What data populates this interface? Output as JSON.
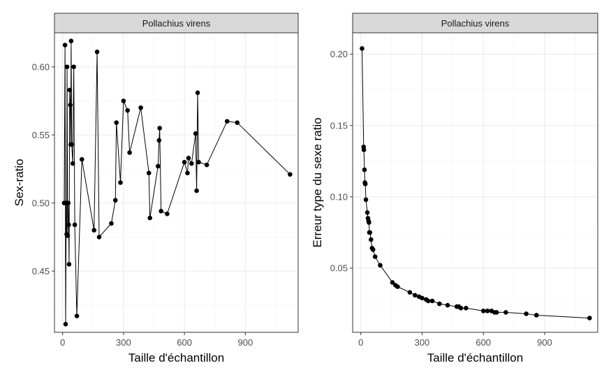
{
  "chart_data": [
    {
      "type": "line",
      "panel_title": "Pollachius virens",
      "xlabel": "Taille d'échantillon",
      "ylabel": "Sex-ratio",
      "xlim": [
        -40,
        1160
      ],
      "ylim": [
        0.405,
        0.625
      ],
      "x_ticks": [
        0,
        300,
        600,
        900
      ],
      "x_tick_labels": [
        "0",
        "300",
        "600",
        "900"
      ],
      "y_ticks": [
        0.45,
        0.5,
        0.55,
        0.6
      ],
      "y_tick_labels": [
        "0.45",
        "0.50",
        "0.55",
        "0.60"
      ],
      "grid": true,
      "series": [
        {
          "x": [
            8,
            12,
            15,
            18,
            20,
            22,
            25,
            28,
            30,
            32,
            35,
            38,
            40,
            42,
            45,
            50,
            55,
            60,
            70,
            95,
            155,
            170,
            180,
            240,
            260,
            265,
            285,
            300,
            320,
            330,
            385,
            425,
            430,
            470,
            475,
            478,
            485,
            515,
            600,
            615,
            620,
            635,
            655,
            660,
            665,
            670,
            710,
            810,
            860,
            1120
          ],
          "y": [
            0.5,
            0.616,
            0.411,
            0.5,
            0.477,
            0.6,
            0.476,
            0.5,
            0.484,
            0.455,
            0.583,
            0.572,
            0.543,
            0.619,
            0.543,
            0.529,
            0.6,
            0.484,
            0.417,
            0.532,
            0.48,
            0.611,
            0.475,
            0.485,
            0.502,
            0.559,
            0.515,
            0.575,
            0.568,
            0.537,
            0.57,
            0.522,
            0.489,
            0.527,
            0.546,
            0.555,
            0.494,
            0.492,
            0.53,
            0.522,
            0.533,
            0.529,
            0.551,
            0.509,
            0.581,
            0.53,
            0.528,
            0.56,
            0.559,
            0.521
          ]
        }
      ]
    },
    {
      "type": "line",
      "panel_title": "Pollachius virens",
      "xlabel": "Taille d'échantillon",
      "ylabel": "Erreur type du sexe ratio",
      "xlim": [
        -40,
        1160
      ],
      "ylim": [
        0.005,
        0.215
      ],
      "x_ticks": [
        0,
        300,
        600,
        900
      ],
      "x_tick_labels": [
        "0",
        "300",
        "600",
        "900"
      ],
      "y_ticks": [
        0.05,
        0.1,
        0.15,
        0.2
      ],
      "y_tick_labels": [
        "0.05",
        "0.10",
        "0.15",
        "0.20"
      ],
      "grid": true,
      "series": [
        {
          "x": [
            6,
            14,
            15,
            18,
            20,
            22,
            25,
            32,
            35,
            38,
            40,
            42,
            45,
            50,
            55,
            60,
            70,
            95,
            155,
            170,
            180,
            240,
            265,
            285,
            300,
            320,
            330,
            350,
            385,
            425,
            470,
            480,
            490,
            515,
            600,
            620,
            640,
            655,
            665,
            710,
            810,
            860,
            1120
          ],
          "y": [
            0.204,
            0.135,
            0.133,
            0.119,
            0.11,
            0.109,
            0.098,
            0.089,
            0.085,
            0.083,
            0.082,
            0.075,
            0.075,
            0.07,
            0.064,
            0.063,
            0.058,
            0.052,
            0.04,
            0.038,
            0.037,
            0.033,
            0.031,
            0.03,
            0.029,
            0.028,
            0.027,
            0.027,
            0.025,
            0.024,
            0.023,
            0.023,
            0.022,
            0.022,
            0.02,
            0.02,
            0.02,
            0.019,
            0.019,
            0.019,
            0.018,
            0.017,
            0.015
          ]
        }
      ]
    }
  ]
}
